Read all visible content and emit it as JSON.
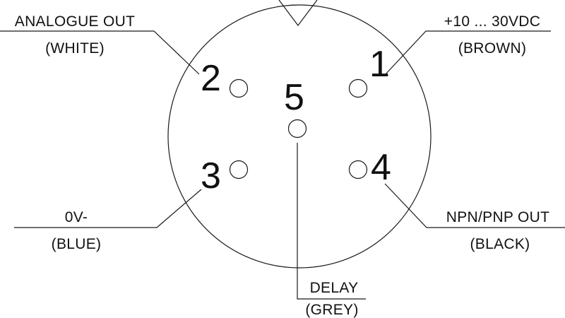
{
  "pins": [
    {
      "number": "1",
      "signal": "+10 ... 30VDC",
      "wire": "(BROWN)"
    },
    {
      "number": "2",
      "signal": "ANALOGUE OUT",
      "wire": "(WHITE)"
    },
    {
      "number": "3",
      "signal": "0V-",
      "wire": "(BLUE)"
    },
    {
      "number": "4",
      "signal": "NPN/PNP OUT",
      "wire": "(BLACK)"
    },
    {
      "number": "5",
      "signal": "DELAY",
      "wire": "(GREY)"
    }
  ]
}
